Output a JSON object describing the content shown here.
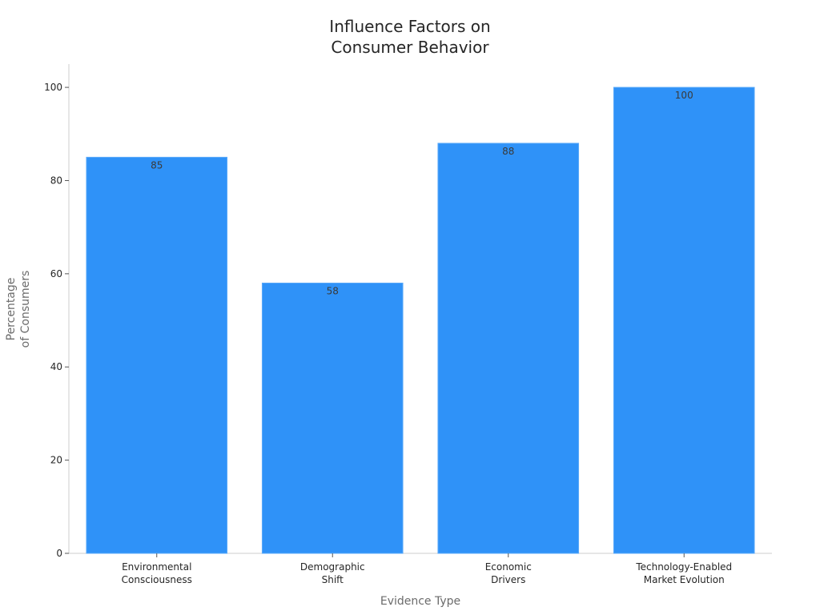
{
  "chart_data": {
    "type": "bar",
    "title_lines": [
      "Influence Factors on",
      "Consumer Behavior"
    ],
    "xlabel": "Evidence Type",
    "ylabel_lines": [
      "Percentage",
      "of Consumers"
    ],
    "categories": [
      [
        "Environmental",
        "Consciousness"
      ],
      [
        "Demographic",
        "Shift"
      ],
      [
        "Economic",
        "Drivers"
      ],
      [
        "Technology-Enabled",
        "Market Evolution"
      ]
    ],
    "values": [
      85,
      58,
      88,
      100
    ],
    "ylim": [
      0,
      105
    ],
    "yticks": [
      "0",
      "20",
      "40",
      "60",
      "80",
      "100"
    ],
    "grid": false,
    "colors": {
      "bar": "#2f92f8",
      "bar_edge": "#5aa9f9",
      "axis": "#cccccc",
      "text": "#262626"
    }
  }
}
